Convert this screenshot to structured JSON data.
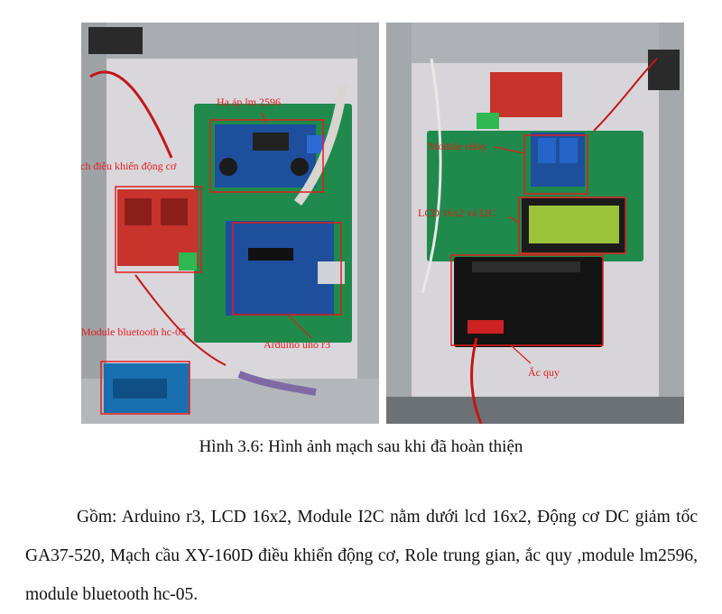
{
  "figure": {
    "caption": "Hình 3.6: Hình ảnh mạch sau khi đã hoàn thiện",
    "left_photo": {
      "labels": {
        "buck": "Hạ áp lm 2596",
        "motor_driver": "Mạch điều khiển động cơ",
        "arduino": "Arduino uno r3",
        "bluetooth": "Module bluetooth hc-05"
      }
    },
    "right_photo": {
      "labels": {
        "relay": "Module relay",
        "lcd": "LCD 16x2 và I2C",
        "battery": "Ắc quy"
      }
    }
  },
  "body": {
    "paragraph": "Gồm: Arduino r3, LCD 16x2, Module I2C nằm dưới lcd 16x2, Động cơ DC giảm tốc GA37-520, Mạch cầu  XY-160D điều khiển động cơ, Role trung gian, ắc quy ,module lm2596, module bluetooth hc-05."
  },
  "colors": {
    "annotation": "#e11d1d",
    "pcb_green": "#1f8a4c",
    "arduino_blue": "#1d4f9c",
    "frame_silver": "#b8bcc0"
  }
}
